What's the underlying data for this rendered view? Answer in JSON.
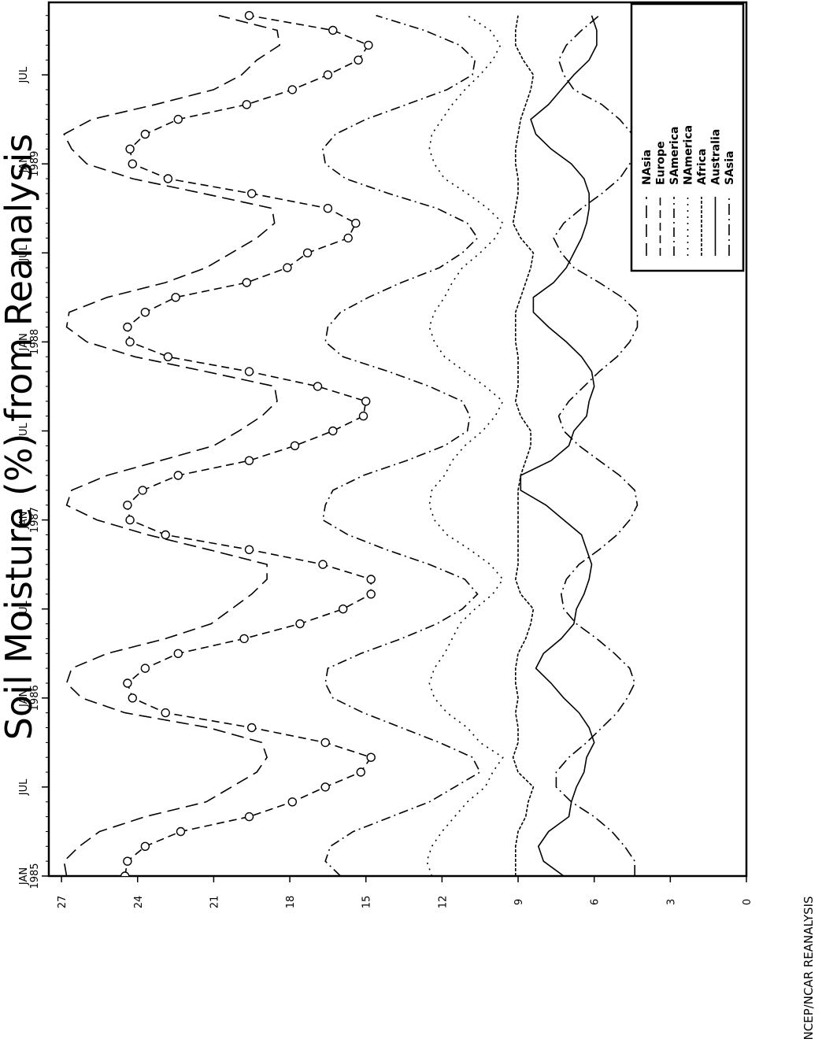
{
  "chart_data": {
    "type": "line",
    "title": "Soil Moisture (%) from Reanalysis",
    "credit": "NCEP/NCAR REANALYSIS",
    "xlabel": "",
    "ylabel": "",
    "ylim": [
      0,
      27.5
    ],
    "yticks": [
      0,
      3,
      6,
      9,
      12,
      15,
      18,
      21,
      24,
      27
    ],
    "xlim": [
      "1985-01",
      "1989-11"
    ],
    "xticks": [
      {
        "month": "1985-01",
        "line1": "JAN",
        "line2": "1985"
      },
      {
        "month": "1985-07",
        "line1": "JUL",
        "line2": ""
      },
      {
        "month": "1986-01",
        "line1": "JAN",
        "line2": "1986"
      },
      {
        "month": "1986-07",
        "line1": "JUL",
        "line2": ""
      },
      {
        "month": "1987-01",
        "line1": "JAN",
        "line2": "1987"
      },
      {
        "month": "1987-07",
        "line1": "JUL",
        "line2": ""
      },
      {
        "month": "1988-01",
        "line1": "JAN",
        "line2": "1988"
      },
      {
        "month": "1988-07",
        "line1": "JUL",
        "line2": ""
      },
      {
        "month": "1989-01",
        "line1": "JAN",
        "line2": "1989"
      },
      {
        "month": "1989-07",
        "line1": "JUL",
        "line2": ""
      }
    ],
    "grid": false,
    "legend_position": "right",
    "orientation": "rotated-90-ccw",
    "months": [
      "1985-01",
      "1985-02",
      "1985-03",
      "1985-04",
      "1985-05",
      "1985-06",
      "1985-07",
      "1985-08",
      "1985-09",
      "1985-10",
      "1985-11",
      "1985-12",
      "1986-01",
      "1986-02",
      "1986-03",
      "1986-04",
      "1986-05",
      "1986-06",
      "1986-07",
      "1986-08",
      "1986-09",
      "1986-10",
      "1986-11",
      "1986-12",
      "1987-01",
      "1987-02",
      "1987-03",
      "1987-04",
      "1987-05",
      "1987-06",
      "1987-07",
      "1987-08",
      "1987-09",
      "1987-10",
      "1987-11",
      "1987-12",
      "1988-01",
      "1988-02",
      "1988-03",
      "1988-04",
      "1988-05",
      "1988-06",
      "1988-07",
      "1988-08",
      "1988-09",
      "1988-10",
      "1988-11",
      "1988-12",
      "1989-01",
      "1989-02",
      "1989-03",
      "1989-04",
      "1989-05",
      "1989-06",
      "1989-07",
      "1989-08",
      "1989-09",
      "1989-10",
      "1989-11"
    ],
    "series": [
      {
        "name": "NAsia",
        "dash": "16,8",
        "marker": "none",
        "values": [
          26.8,
          26.9,
          26.3,
          25.5,
          23.7,
          21.3,
          20.3,
          19.3,
          18.9,
          19.1,
          21.2,
          24.5,
          26.2,
          26.8,
          26.6,
          25.2,
          22.9,
          21.1,
          20.3,
          19.5,
          18.9,
          18.9,
          21.2,
          23.6,
          25.6,
          26.8,
          26.6,
          25.2,
          23.1,
          21.0,
          20.0,
          19.1,
          18.5,
          18.6,
          21.3,
          24.1,
          26.0,
          26.8,
          26.7,
          25.2,
          22.9,
          21.3,
          20.3,
          19.3,
          18.6,
          18.7,
          21.4,
          24.2,
          26.0,
          26.6,
          26.9,
          25.8,
          23.3,
          21.0,
          19.9,
          19.3,
          18.4,
          18.5,
          20.8
        ]
      },
      {
        "name": "Europe",
        "dash": "10,6",
        "marker": "circle",
        "values": [
          24.5,
          24.4,
          23.7,
          22.3,
          19.6,
          17.9,
          16.6,
          15.2,
          14.8,
          16.6,
          19.5,
          22.9,
          24.2,
          24.4,
          23.7,
          22.4,
          19.8,
          17.6,
          15.9,
          14.8,
          14.8,
          16.7,
          19.6,
          22.9,
          24.3,
          24.4,
          23.8,
          22.4,
          19.6,
          17.8,
          16.3,
          15.1,
          15.0,
          16.9,
          19.6,
          22.8,
          24.3,
          24.4,
          23.7,
          22.5,
          19.7,
          18.1,
          17.3,
          15.7,
          15.4,
          16.5,
          19.5,
          22.8,
          24.2,
          24.3,
          23.7,
          22.4,
          19.7,
          17.9,
          16.5,
          15.3,
          14.9,
          16.3,
          19.6
        ]
      },
      {
        "name": "SAmerica",
        "dash": "12,5,2,5",
        "marker": "none",
        "values": [
          16.0,
          16.6,
          16.4,
          15.5,
          14.0,
          12.5,
          11.5,
          10.5,
          10.8,
          12.1,
          13.6,
          15.1,
          16.3,
          16.6,
          16.5,
          15.2,
          13.6,
          12.2,
          11.2,
          10.6,
          11.1,
          12.5,
          14.2,
          15.7,
          16.7,
          16.6,
          16.3,
          15.1,
          13.4,
          11.9,
          11.0,
          10.9,
          11.2,
          12.5,
          14.1,
          15.9,
          16.6,
          16.5,
          16.0,
          14.9,
          13.6,
          12.1,
          11.2,
          10.6,
          11.0,
          12.2,
          14.1,
          15.8,
          16.6,
          16.7,
          16.2,
          15.0,
          13.4,
          11.8,
          10.8,
          10.7,
          11.3,
          12.7,
          14.6
        ]
      },
      {
        "name": "NAmerica",
        "dash": "2,6",
        "marker": "none",
        "values": [
          12.4,
          12.6,
          12.4,
          12.0,
          11.5,
          11.0,
          10.3,
          10.0,
          9.6,
          10.5,
          11.0,
          11.8,
          12.3,
          12.5,
          12.3,
          11.9,
          11.6,
          11.3,
          10.7,
          10.0,
          9.6,
          10.1,
          10.9,
          11.8,
          12.3,
          12.5,
          12.4,
          11.9,
          11.6,
          11.1,
          10.4,
          9.9,
          9.6,
          10.3,
          11.1,
          11.9,
          12.3,
          12.5,
          12.3,
          11.9,
          11.6,
          11.2,
          10.5,
          9.9,
          9.6,
          10.2,
          11.0,
          11.9,
          12.3,
          12.5,
          12.4,
          12.0,
          11.6,
          11.1,
          10.5,
          10.0,
          9.7,
          10.1,
          11.0
        ]
      },
      {
        "name": "Africa",
        "dash": "4,2",
        "marker": "none",
        "values": [
          9.1,
          9.1,
          9.1,
          9.0,
          8.7,
          8.6,
          8.4,
          9.0,
          9.2,
          9.0,
          9.0,
          9.1,
          9.0,
          9.1,
          9.1,
          9.0,
          8.7,
          8.5,
          8.4,
          8.9,
          9.1,
          9.0,
          9.0,
          9.0,
          9.0,
          9.0,
          9.0,
          8.9,
          8.7,
          8.5,
          8.5,
          8.9,
          9.1,
          9.0,
          9.0,
          9.0,
          9.1,
          9.1,
          9.1,
          8.9,
          8.7,
          8.5,
          8.4,
          8.9,
          9.2,
          9.1,
          9.0,
          9.0,
          9.1,
          9.1,
          9.0,
          8.9,
          8.7,
          8.5,
          8.4,
          8.8,
          9.1,
          9.1,
          9.0
        ]
      },
      {
        "name": "Australia",
        "dash": "none",
        "marker": "none",
        "values": [
          7.2,
          8.0,
          8.2,
          7.8,
          7.0,
          6.9,
          6.7,
          6.4,
          6.3,
          6.0,
          6.2,
          6.6,
          7.2,
          7.7,
          8.3,
          8.0,
          7.3,
          6.8,
          6.7,
          6.4,
          6.2,
          6.1,
          6.3,
          6.5,
          7.2,
          7.9,
          8.9,
          8.9,
          7.7,
          7.0,
          6.8,
          6.3,
          6.2,
          6.0,
          6.1,
          6.5,
          7.1,
          7.8,
          8.4,
          8.4,
          7.6,
          7.1,
          6.8,
          6.5,
          6.3,
          6.2,
          6.2,
          6.4,
          6.9,
          7.7,
          8.3,
          8.5,
          7.8,
          7.3,
          6.8,
          6.2,
          5.9,
          5.9,
          6.1
        ]
      },
      {
        "name": "SAsia",
        "dash": "14,5,2,5",
        "marker": "none",
        "values": [
          4.4,
          4.4,
          4.8,
          5.3,
          6.0,
          6.9,
          7.5,
          7.5,
          7.0,
          6.3,
          5.7,
          5.1,
          4.7,
          4.4,
          4.6,
          5.2,
          5.9,
          6.7,
          7.2,
          7.3,
          7.1,
          6.6,
          5.8,
          5.1,
          4.6,
          4.3,
          4.4,
          5.0,
          5.8,
          6.6,
          7.2,
          7.4,
          7.0,
          6.4,
          5.8,
          5.1,
          4.6,
          4.3,
          4.3,
          4.9,
          5.8,
          6.8,
          7.3,
          7.6,
          7.2,
          6.5,
          5.7,
          5.0,
          4.6,
          4.3,
          4.5,
          5.0,
          5.7,
          6.8,
          7.2,
          7.4,
          7.1,
          6.5,
          5.8
        ]
      }
    ]
  }
}
